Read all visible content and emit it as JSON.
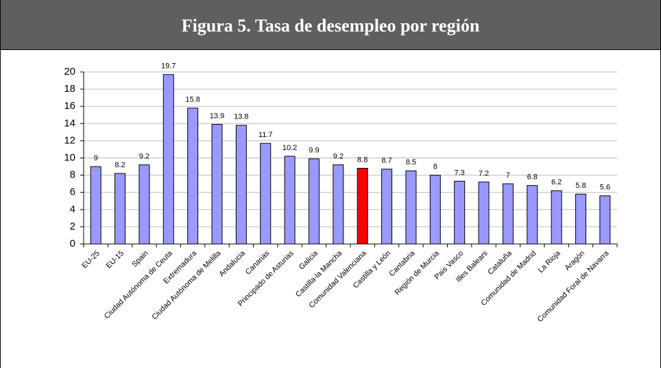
{
  "chart_data": {
    "type": "bar",
    "title": "Figura 5. Tasa de desempleo por región",
    "categories": [
      "EU-25",
      "EU-15",
      "Spain",
      "Ciudad Autónoma de Ceuta",
      "Extremadura",
      "Ciudad Autónoma de Melilla",
      "Andalucia",
      "Canarias",
      "Principado de Asturias",
      "Galicia",
      "Castilla-la Mancha",
      "Comunidad Valenciana",
      "Castilla y León",
      "Cantabria",
      "Región de Murcia",
      "Pais Vasco",
      "Illes Balears",
      "Cataluña",
      "Comunidad de Madrid",
      "La Rioja",
      "Aragón",
      "Comunidad Foral de Navarra"
    ],
    "values": [
      9,
      8.2,
      9.2,
      19.7,
      15.8,
      13.9,
      13.8,
      11.7,
      10.2,
      9.9,
      9.2,
      8.8,
      8.7,
      8.5,
      8,
      7.3,
      7.2,
      7,
      6.8,
      6.2,
      5.8,
      5.6
    ],
    "colors": [
      "#9999ff",
      "#9999ff",
      "#9999ff",
      "#9999ff",
      "#9999ff",
      "#9999ff",
      "#9999ff",
      "#9999ff",
      "#9999ff",
      "#9999ff",
      "#9999ff",
      "#ff0000",
      "#9999ff",
      "#9999ff",
      "#9999ff",
      "#9999ff",
      "#9999ff",
      "#9999ff",
      "#9999ff",
      "#9999ff",
      "#9999ff",
      "#9999ff"
    ],
    "ylim": [
      0,
      20
    ],
    "yticks": [
      0,
      2,
      4,
      6,
      8,
      10,
      12,
      14,
      16,
      18,
      20
    ],
    "grid": true
  }
}
